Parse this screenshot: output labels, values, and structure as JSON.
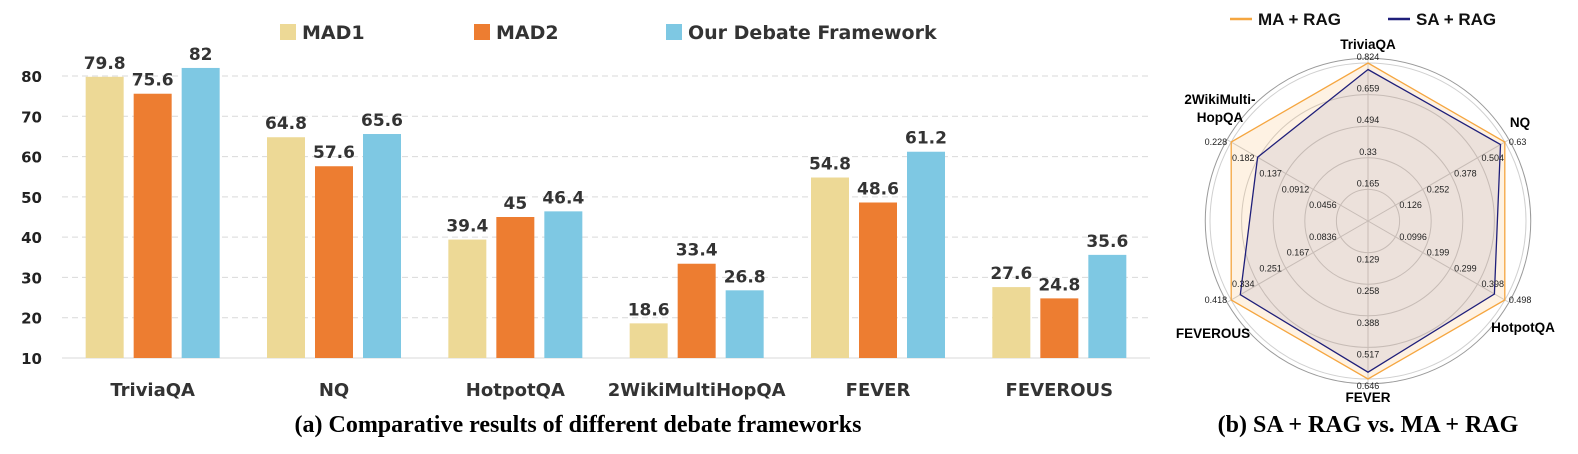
{
  "chart_data": [
    {
      "type": "bar",
      "title": "(a) Comparative results of different debate frameworks",
      "categories": [
        "TriviaQA",
        "NQ",
        "HotpotQA",
        "2WikiMultiHopQA",
        "FEVER",
        "FEVEROUS"
      ],
      "series": [
        {
          "name": "MAD1",
          "values": [
            79.8,
            64.8,
            39.4,
            18.6,
            54.8,
            27.6
          ],
          "color": "#EDD996"
        },
        {
          "name": "MAD2",
          "values": [
            75.6,
            57.6,
            45,
            33.4,
            48.6,
            24.8
          ],
          "color": "#ED7D31"
        },
        {
          "name": "Our Debate Framework",
          "values": [
            82,
            65.6,
            46.4,
            26.8,
            61.2,
            35.6
          ],
          "color": "#7EC8E3"
        }
      ],
      "ylim": [
        10,
        85
      ],
      "yticks": [
        10,
        20,
        30,
        40,
        50,
        60,
        70,
        80
      ],
      "grid": true,
      "legend": "top"
    },
    {
      "type": "radar",
      "title": "(b) SA + RAG vs. MA + RAG",
      "axes": [
        {
          "label": "TriviaQA",
          "ticks": [
            "0.165",
            "0.33",
            "0.494",
            "0.659",
            "0.824"
          ],
          "max": 0.824
        },
        {
          "label": "NQ",
          "ticks": [
            "0.126",
            "0.252",
            "0.378",
            "0.504",
            "0.63"
          ],
          "max": 0.63
        },
        {
          "label": "HotpotQA",
          "ticks": [
            "0.0996",
            "0.199",
            "0.299",
            "0.398",
            "0.498"
          ],
          "max": 0.498
        },
        {
          "label": "FEVER",
          "ticks": [
            "0.129",
            "0.258",
            "0.388",
            "0.517",
            "0.646"
          ],
          "max": 0.646
        },
        {
          "label": "FEVEROUS",
          "ticks": [
            "0.0836",
            "0.167",
            "0.251",
            "0.334",
            "0.418"
          ],
          "max": 0.418
        },
        {
          "label": "2WikiMulti-\nHopQA",
          "ticks": [
            "0.0456",
            "0.0912",
            "0.137",
            "0.182",
            "0.228"
          ],
          "max": 0.228
        }
      ],
      "series": [
        {
          "name": "MA + RAG",
          "color": "#F5A640",
          "values": [
            0.824,
            0.63,
            0.498,
            0.646,
            0.418,
            0.228
          ]
        },
        {
          "name": "SA + RAG",
          "color": "#1F1F7A",
          "values": [
            0.79,
            0.61,
            0.46,
            0.618,
            0.39,
            0.184
          ]
        }
      ],
      "legend": "top"
    }
  ]
}
